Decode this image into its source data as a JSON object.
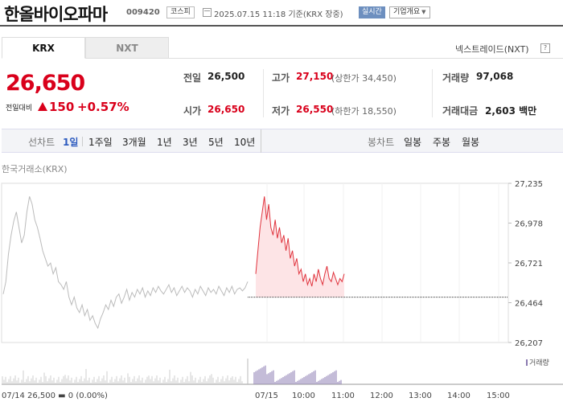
{
  "header": {
    "company": "한올바이오파마",
    "code": "009420",
    "market": "코스피",
    "asof": "2025.07.15 11:18 기준(KRX 장중)",
    "realtime": "실시간",
    "company_info": "기업개요"
  },
  "tabs": {
    "krx": "KRX",
    "nxt": "NXT",
    "nextrade": "넥스트레이드(NXT)"
  },
  "price": {
    "current": "26,650",
    "change_label": "전일대비",
    "change": "150",
    "rate": "+0.57%"
  },
  "quotes": {
    "prev_label": "전일",
    "prev": "26,500",
    "open_label": "시가",
    "open": "26,650",
    "high_label": "고가",
    "high": "27,150",
    "upper_limit": "(상한가 34,450)",
    "low_label": "저가",
    "low": "26,550",
    "lower_limit": "(하한가 18,550)",
    "volume_label": "거래량",
    "volume": "97,068",
    "amount_label": "거래대금",
    "amount": "2,603 백만"
  },
  "toolbar": {
    "line_label": "선차트",
    "p1d": "1일",
    "p1w": "1주일",
    "p3m": "3개월",
    "p1y": "1년",
    "p3y": "3년",
    "p5y": "5년",
    "p10y": "10년",
    "candle_label": "봉차트",
    "daily": "일봉",
    "weekly": "주봉",
    "monthly": "월봉"
  },
  "chart_data": {
    "type": "line",
    "source_label": "한국거래소(KRX)",
    "y_ticks": [
      27235,
      26978,
      26721,
      26464,
      26207
    ],
    "ylim": [
      26207,
      27235
    ],
    "reference_price": 26500,
    "x_ticks": [
      "07/15",
      "10:00",
      "11:00",
      "12:00",
      "13:00",
      "14:00",
      "15:00"
    ],
    "prev_day_note": "07/14 26,500 ▬ 0 (0.00%)",
    "volume_label": "거래량",
    "series": [
      {
        "name": "07/14",
        "color": "#bbbbbb",
        "values": [
          26520,
          26600,
          26780,
          26900,
          26990,
          27050,
          26950,
          26850,
          26900,
          27050,
          27150,
          27100,
          27000,
          26950,
          26880,
          26800,
          26750,
          26700,
          26720,
          26650,
          26690,
          26600,
          26580,
          26550,
          26600,
          26500,
          26450,
          26500,
          26430,
          26400,
          26450,
          26380,
          26420,
          26350,
          26380,
          26330,
          26300,
          26360,
          26400,
          26450,
          26420,
          26480,
          26440,
          26500,
          26520,
          26460,
          26500,
          26550,
          26480,
          26530,
          26500,
          26550,
          26520,
          26560,
          26500,
          26540,
          26510,
          26560,
          26530,
          26570,
          26540,
          26520,
          26550,
          26580,
          26530,
          26560,
          26510,
          26540,
          26570,
          26530,
          26560,
          26540,
          26500,
          26550,
          26520,
          26570,
          26540,
          26510,
          26560,
          26530,
          26550,
          26520,
          26570,
          26540,
          26510,
          26560,
          26530,
          26570,
          26520,
          26550,
          26560,
          26540,
          26560,
          26600
        ]
      },
      {
        "name": "07/15",
        "color": "#e0333d",
        "values": [
          26650,
          26800,
          26950,
          27050,
          27150,
          27000,
          27100,
          26950,
          26900,
          27000,
          26880,
          26950,
          26850,
          26900,
          26800,
          26880,
          26750,
          26800,
          26700,
          26750,
          26650,
          26680,
          26600,
          26650,
          26580,
          26620,
          26570,
          26650,
          26600,
          26680,
          26620,
          26580,
          26650,
          26700,
          26620,
          26600,
          26660,
          26620,
          26580,
          26620,
          26600,
          26650
        ]
      }
    ]
  }
}
